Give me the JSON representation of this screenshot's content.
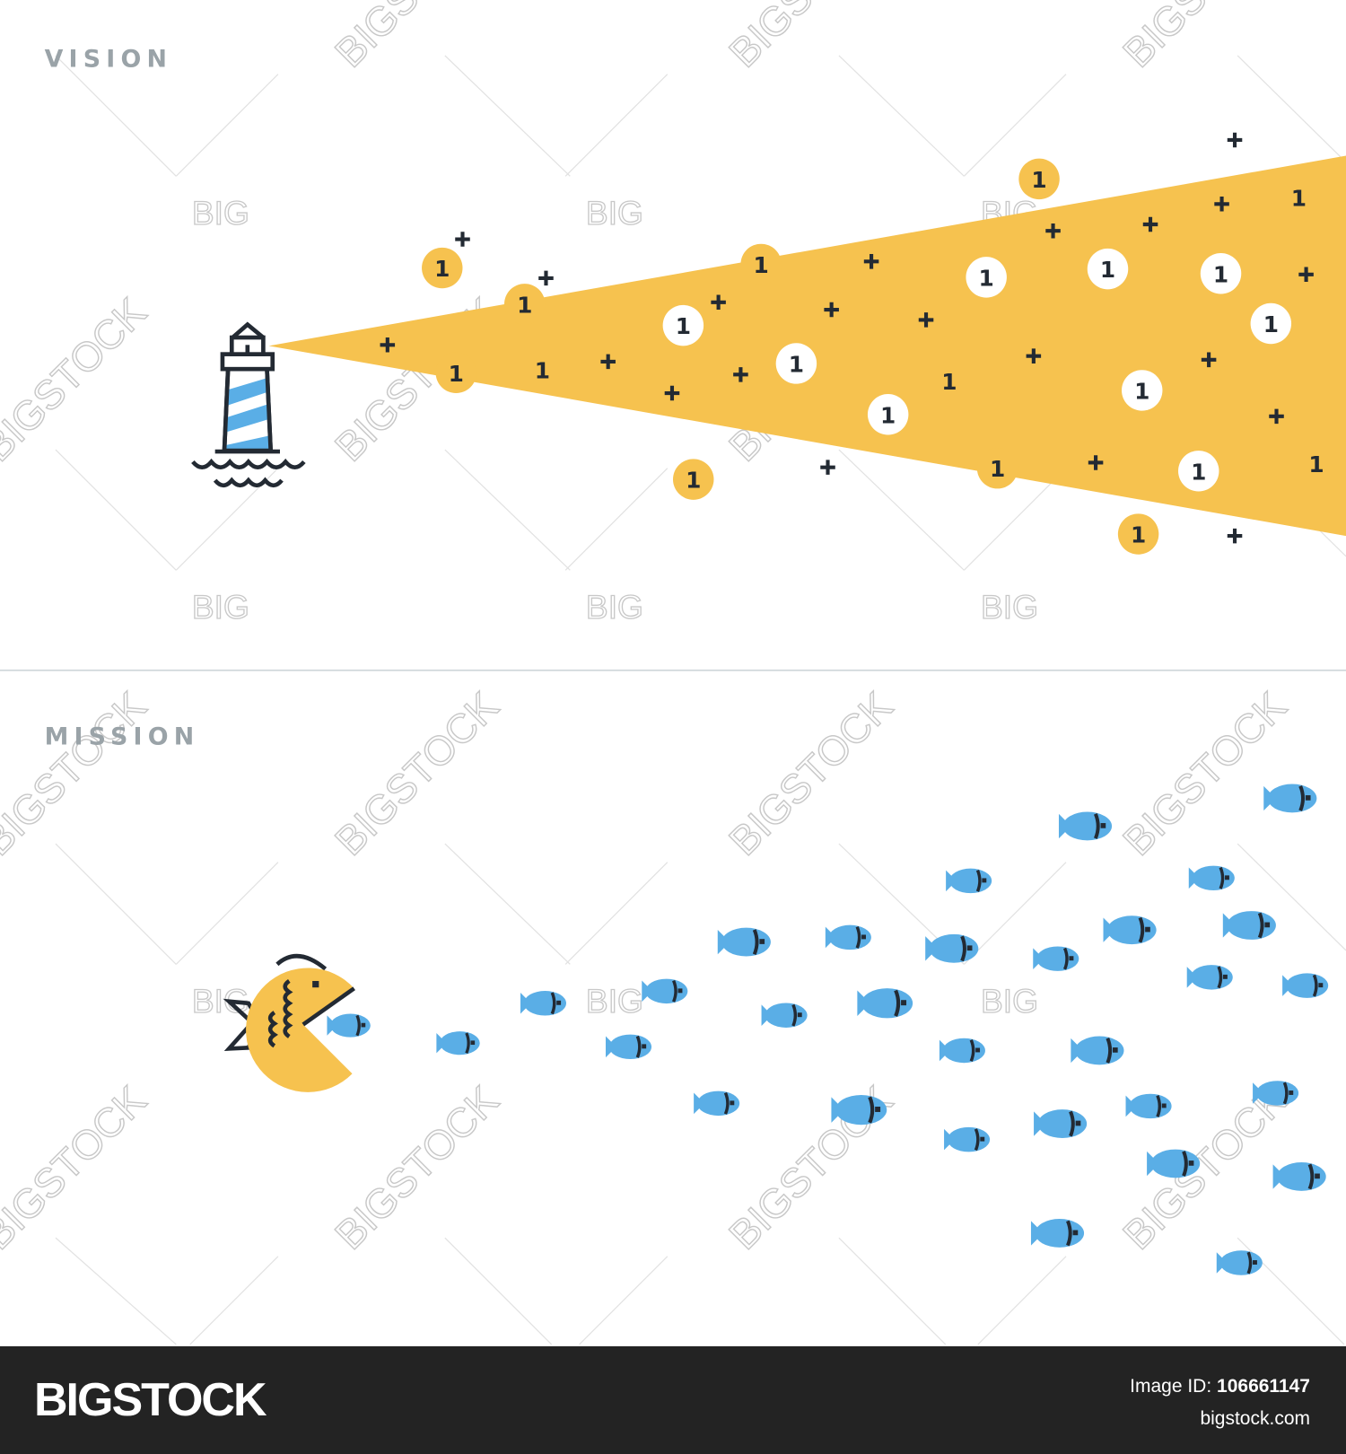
{
  "sections": {
    "vision_label": "VISION",
    "mission_label": "MISSION"
  },
  "coin_label": "1",
  "watermark": {
    "large": "BIGSTOCK",
    "small": "BIG"
  },
  "footer": {
    "brand": "BIGSTOCK",
    "image_id_label": "Image ID:",
    "image_id": "106661147",
    "site": "bigstock.com"
  },
  "icons": [
    "lighthouse-icon",
    "coin-icon",
    "plus-icon",
    "big-fish-icon",
    "small-fish-icon"
  ],
  "colors": {
    "beam": "#f6c24f",
    "coin_orange": "#f6c24f",
    "coin_white": "#ffffff",
    "fish_blue": "#5aaee6",
    "outline": "#232a33",
    "label_gray": "#9aa3a8",
    "divider": "#c9d2d6",
    "footer_bg": "#232323"
  }
}
